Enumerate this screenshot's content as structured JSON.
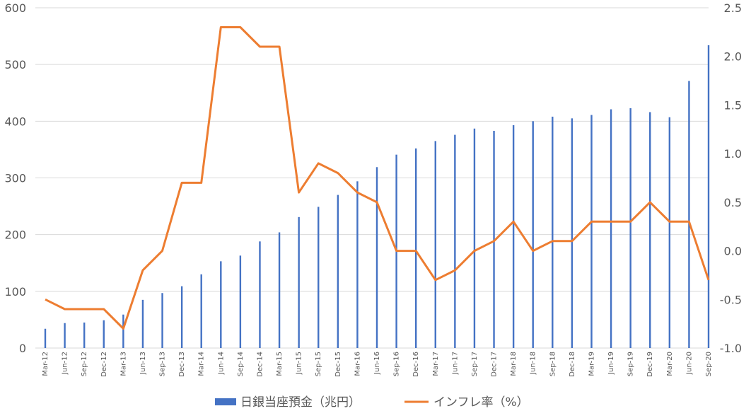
{
  "chart_data": {
    "type": "bar+line",
    "categories": [
      "Mar-12",
      "Jun-12",
      "Sep-12",
      "Dec-12",
      "Mar-13",
      "Jun-13",
      "Sep-13",
      "Dec-13",
      "Mar-14",
      "Jun-14",
      "Sep-14",
      "Dec-14",
      "Mar-15",
      "Jun-15",
      "Sep-15",
      "Dec-15",
      "Mar-16",
      "Jun-16",
      "Sep-16",
      "Dec-16",
      "Mar-17",
      "Jun-17",
      "Sep-17",
      "Dec-17",
      "Mar-18",
      "Jun-18",
      "Sep-18",
      "Dec-18",
      "Mar-19",
      "Jun-19",
      "Sep-19",
      "Dec-19",
      "Mar-20",
      "Jun-20",
      "Sep-20"
    ],
    "series": [
      {
        "name": "日銀当座預金（兆円）",
        "type": "bar",
        "axis": "left",
        "color": "#4472C4",
        "values": [
          34,
          44,
          45,
          49,
          59,
          85,
          97,
          109,
          130,
          153,
          163,
          188,
          204,
          231,
          249,
          270,
          294,
          319,
          341,
          352,
          365,
          376,
          387,
          383,
          393,
          400,
          408,
          405,
          411,
          421,
          423,
          416,
          407,
          471,
          534
        ]
      },
      {
        "name": "インフレ率（%）",
        "type": "line",
        "axis": "right",
        "color": "#ED7D31",
        "values": [
          -0.5,
          -0.6,
          -0.6,
          -0.6,
          -0.8,
          -0.2,
          0.0,
          0.7,
          0.7,
          2.3,
          2.3,
          2.1,
          2.1,
          0.6,
          0.9,
          0.8,
          0.6,
          0.5,
          0.0,
          0.0,
          -0.3,
          -0.2,
          0.0,
          0.1,
          0.3,
          0.0,
          0.1,
          0.1,
          0.3,
          0.3,
          0.3,
          0.5,
          0.3,
          0.3,
          -0.3
        ]
      }
    ],
    "y_left": {
      "min": 0,
      "max": 600,
      "ticks": [
        "0",
        "100",
        "200",
        "300",
        "400",
        "500",
        "600"
      ]
    },
    "y_right": {
      "min": -1.0,
      "max": 2.5,
      "ticks": [
        "-1.0",
        "-0.5",
        "0.0",
        "0.5",
        "1.0",
        "1.5",
        "2.0",
        "2.5"
      ]
    },
    "grid": true,
    "legend_position": "bottom"
  }
}
